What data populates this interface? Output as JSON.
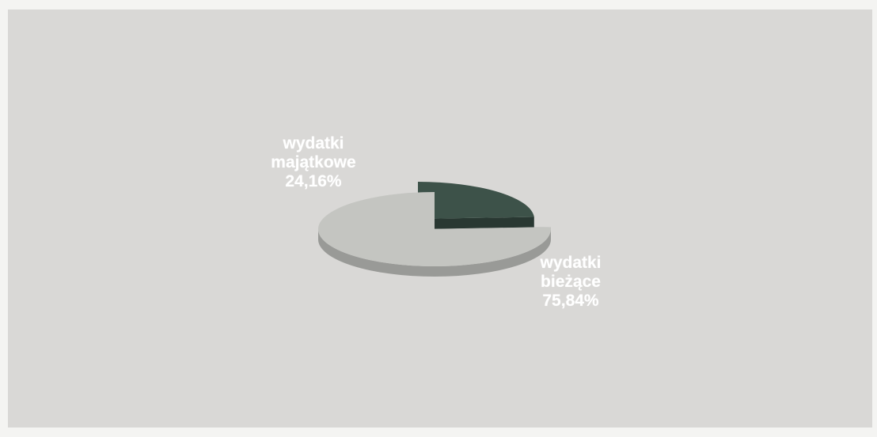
{
  "chart_data": {
    "type": "pie",
    "slices": [
      {
        "name_line1": "wydatki",
        "name_line2": "majątkowe",
        "value": 24.16,
        "value_label": "24,16%",
        "color": "#3d5249",
        "exploded": true
      },
      {
        "name_line1": "wydatki",
        "name_line2": "bieżące",
        "value": 75.84,
        "value_label": "75,84%",
        "color": "#c4c5c1",
        "exploded": false
      }
    ],
    "style": "3d",
    "legend": "none"
  }
}
